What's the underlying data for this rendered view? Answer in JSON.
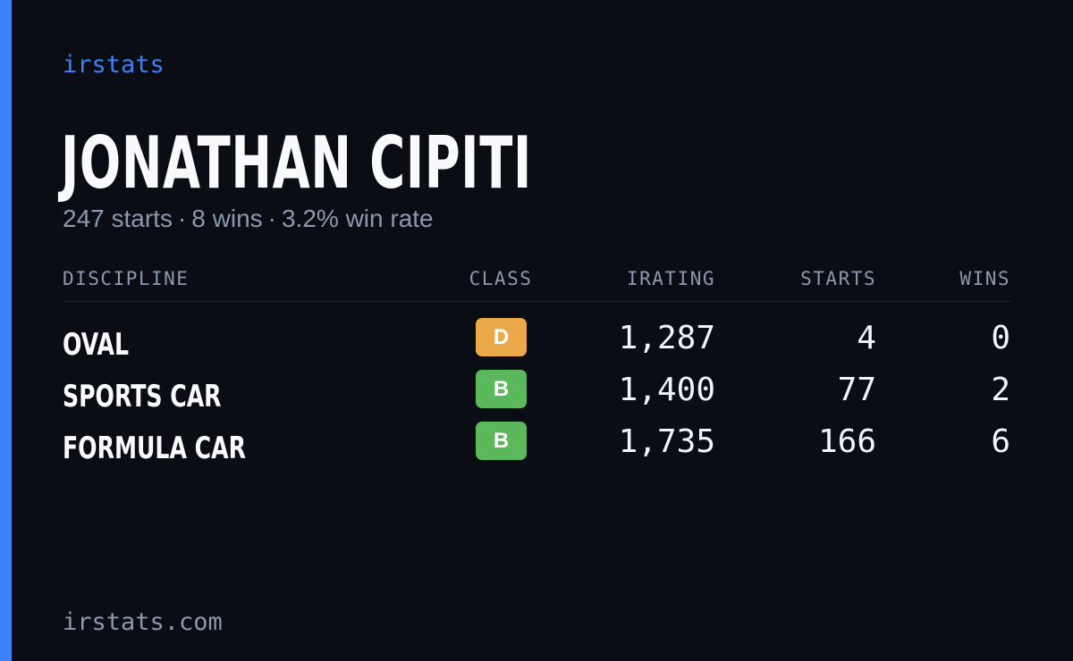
{
  "brand": "irstats",
  "player": {
    "name": "JONATHAN CIPITI",
    "summary": {
      "starts": "247 starts",
      "wins": "8 wins",
      "win_rate": "3.2% win rate",
      "separator": "·"
    }
  },
  "table": {
    "headers": {
      "discipline": "DISCIPLINE",
      "class": "CLASS",
      "irating": "IRATING",
      "starts": "STARTS",
      "wins": "WINS"
    },
    "rows": [
      {
        "discipline": "OVAL",
        "class": "D",
        "class_color": "#eba94a",
        "irating": "1,287",
        "starts": "4",
        "wins": "0"
      },
      {
        "discipline": "SPORTS CAR",
        "class": "B",
        "class_color": "#5cb85c",
        "irating": "1,400",
        "starts": "77",
        "wins": "2"
      },
      {
        "discipline": "FORMULA CAR",
        "class": "B",
        "class_color": "#5cb85c",
        "irating": "1,735",
        "starts": "166",
        "wins": "6"
      }
    ]
  },
  "footer": {
    "url": "irstats.com"
  },
  "colors": {
    "accent": "#3b82f6",
    "background": "#0a0d14",
    "muted_text": "#8b98ad",
    "primary_text": "#f8fafc"
  }
}
